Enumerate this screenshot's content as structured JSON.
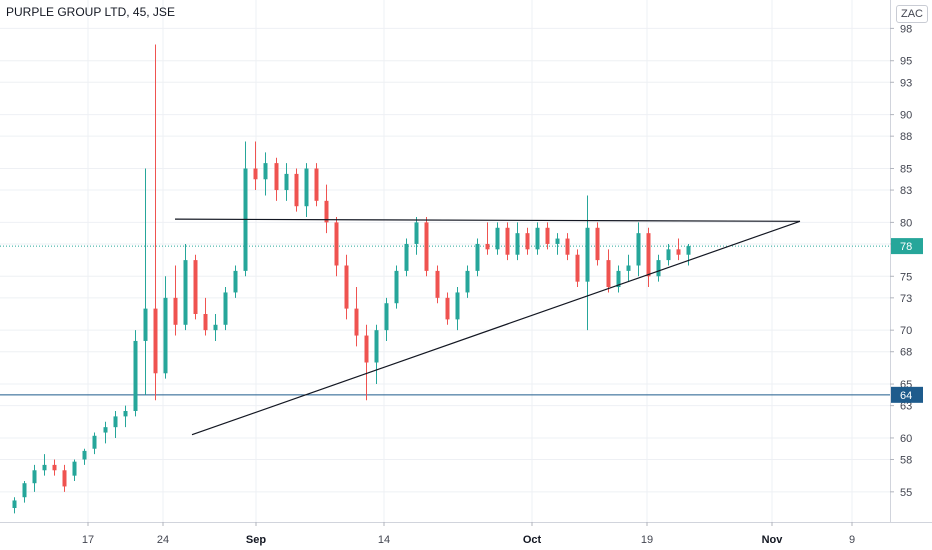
{
  "chart_data": {
    "type": "candlestick",
    "title": "PURPLE GROUP LTD, 45, JSE",
    "x_tick_labels": [
      "17",
      "24",
      "Sep",
      "14",
      "Oct",
      "19",
      "Nov",
      "9"
    ],
    "y_tick_labels": [
      "55",
      "58",
      "60",
      "63",
      "65",
      "68",
      "70",
      "73",
      "75",
      "78",
      "80",
      "83",
      "85",
      "88",
      "90",
      "93",
      "95",
      "98"
    ],
    "ylim": [
      53.5,
      98.5
    ],
    "last_price_label": "78",
    "last_price": 77.8,
    "horizontal_level_label": "64",
    "horizontal_level": 64.0,
    "grid": true,
    "up_color": "#26a69a",
    "down_color": "#ef5350",
    "level_color": "#1e5b8c",
    "trendlines": [
      {
        "name": "resistance",
        "from": {
          "date": "Aug 25",
          "price": 80.3
        },
        "to": {
          "date": "Nov 4",
          "price": 80.1
        }
      },
      {
        "name": "ascending-support",
        "from": {
          "date": "Aug 26",
          "price": 60.3
        },
        "to": {
          "date": "Nov 4",
          "price": 80.1
        }
      }
    ],
    "series": [
      {
        "name": "",
        "points": [
          {
            "x": "Aug 11",
            "o": 53.5,
            "h": 54.5,
            "l": 53.0,
            "c": 54.2
          },
          {
            "x": "Aug 12",
            "o": 54.5,
            "h": 56.0,
            "l": 54.0,
            "c": 55.8
          },
          {
            "x": "Aug 13",
            "o": 55.8,
            "h": 57.5,
            "l": 55.0,
            "c": 57.0
          },
          {
            "x": "Aug 14",
            "o": 57.0,
            "h": 58.5,
            "l": 56.5,
            "c": 57.5
          },
          {
            "x": "Aug 15",
            "o": 57.5,
            "h": 58.0,
            "l": 56.5,
            "c": 57.0
          },
          {
            "x": "Aug 16",
            "o": 57.0,
            "h": 57.5,
            "l": 55.0,
            "c": 55.5
          },
          {
            "x": "Aug 17",
            "o": 56.5,
            "h": 58.0,
            "l": 56.0,
            "c": 57.8
          },
          {
            "x": "Aug 18",
            "o": 58.0,
            "h": 59.0,
            "l": 57.5,
            "c": 58.8
          },
          {
            "x": "Aug 19",
            "o": 59.0,
            "h": 60.5,
            "l": 58.5,
            "c": 60.2
          },
          {
            "x": "Aug 20",
            "o": 60.5,
            "h": 61.5,
            "l": 59.5,
            "c": 61.0
          },
          {
            "x": "Aug 21",
            "o": 61.0,
            "h": 62.5,
            "l": 60.0,
            "c": 62.0
          },
          {
            "x": "Aug 22",
            "o": 62.0,
            "h": 63.0,
            "l": 61.0,
            "c": 62.5
          },
          {
            "x": "Aug 23",
            "o": 62.5,
            "h": 70.0,
            "l": 62.0,
            "c": 69.0
          },
          {
            "x": "Aug 23b",
            "o": 69.0,
            "h": 85.0,
            "l": 64.0,
            "c": 72.0
          },
          {
            "x": "Aug 23c",
            "o": 72.0,
            "h": 96.5,
            "l": 63.5,
            "c": 66.0
          },
          {
            "x": "Aug 24",
            "o": 66.0,
            "h": 75.0,
            "l": 65.5,
            "c": 73.0
          },
          {
            "x": "Aug 25",
            "o": 73.0,
            "h": 76.0,
            "l": 69.5,
            "c": 70.5
          },
          {
            "x": "Aug 26",
            "o": 70.5,
            "h": 78.0,
            "l": 70.0,
            "c": 76.5
          },
          {
            "x": "Aug 27",
            "o": 76.5,
            "h": 77.0,
            "l": 71.0,
            "c": 71.5
          },
          {
            "x": "Aug 28",
            "o": 71.5,
            "h": 73.0,
            "l": 69.5,
            "c": 70.0
          },
          {
            "x": "Aug 29",
            "o": 70.0,
            "h": 71.5,
            "l": 69.0,
            "c": 70.5
          },
          {
            "x": "Aug 30",
            "o": 70.5,
            "h": 74.0,
            "l": 70.0,
            "c": 73.5
          },
          {
            "x": "Aug 31",
            "o": 73.5,
            "h": 76.0,
            "l": 73.0,
            "c": 75.5
          },
          {
            "x": "Sep 1",
            "o": 75.5,
            "h": 87.5,
            "l": 75.0,
            "c": 85.0
          },
          {
            "x": "Sep 2",
            "o": 85.0,
            "h": 87.5,
            "l": 83.0,
            "c": 84.0
          },
          {
            "x": "Sep 3",
            "o": 84.0,
            "h": 86.5,
            "l": 82.5,
            "c": 85.5
          },
          {
            "x": "Sep 4",
            "o": 85.5,
            "h": 86.0,
            "l": 82.0,
            "c": 83.0
          },
          {
            "x": "Sep 5",
            "o": 83.0,
            "h": 85.5,
            "l": 82.0,
            "c": 84.5
          },
          {
            "x": "Sep 6",
            "o": 84.5,
            "h": 85.0,
            "l": 81.0,
            "c": 81.5
          },
          {
            "x": "Sep 7",
            "o": 81.5,
            "h": 85.5,
            "l": 80.5,
            "c": 85.0
          },
          {
            "x": "Sep 8",
            "o": 85.0,
            "h": 85.5,
            "l": 81.5,
            "c": 82.0
          },
          {
            "x": "Sep 9",
            "o": 82.0,
            "h": 83.5,
            "l": 79.0,
            "c": 80.0
          },
          {
            "x": "Sep 10",
            "o": 80.0,
            "h": 80.5,
            "l": 75.0,
            "c": 76.0
          },
          {
            "x": "Sep 11",
            "o": 76.0,
            "h": 77.0,
            "l": 71.0,
            "c": 72.0
          },
          {
            "x": "Sep 12",
            "o": 72.0,
            "h": 74.0,
            "l": 68.5,
            "c": 69.5
          },
          {
            "x": "Sep 13",
            "o": 69.5,
            "h": 70.5,
            "l": 63.5,
            "c": 67.0
          },
          {
            "x": "Sep 14",
            "o": 67.0,
            "h": 70.5,
            "l": 65.0,
            "c": 70.0
          },
          {
            "x": "Sep 15",
            "o": 70.0,
            "h": 73.0,
            "l": 69.0,
            "c": 72.5
          },
          {
            "x": "Sep 16",
            "o": 72.5,
            "h": 76.0,
            "l": 72.0,
            "c": 75.5
          },
          {
            "x": "Sep 17",
            "o": 75.5,
            "h": 78.5,
            "l": 75.0,
            "c": 78.0
          },
          {
            "x": "Sep 18",
            "o": 78.0,
            "h": 80.5,
            "l": 77.0,
            "c": 80.0
          },
          {
            "x": "Sep 19",
            "o": 80.0,
            "h": 80.5,
            "l": 75.0,
            "c": 75.5
          },
          {
            "x": "Sep 20",
            "o": 75.5,
            "h": 76.0,
            "l": 72.5,
            "c": 73.0
          },
          {
            "x": "Sep 21",
            "o": 73.0,
            "h": 73.5,
            "l": 70.5,
            "c": 71.0
          },
          {
            "x": "Sep 22",
            "o": 71.0,
            "h": 74.0,
            "l": 70.0,
            "c": 73.5
          },
          {
            "x": "Sep 23",
            "o": 73.5,
            "h": 76.0,
            "l": 73.0,
            "c": 75.5
          },
          {
            "x": "Sep 24",
            "o": 75.5,
            "h": 78.5,
            "l": 75.0,
            "c": 78.0
          },
          {
            "x": "Sep 25",
            "o": 78.0,
            "h": 80.0,
            "l": 77.0,
            "c": 77.5
          },
          {
            "x": "Sep 26",
            "o": 77.5,
            "h": 80.0,
            "l": 77.0,
            "c": 79.5
          },
          {
            "x": "Sep 27",
            "o": 79.5,
            "h": 80.0,
            "l": 76.5,
            "c": 77.0
          },
          {
            "x": "Sep 28",
            "o": 77.0,
            "h": 80.0,
            "l": 76.5,
            "c": 79.0
          },
          {
            "x": "Sep 29",
            "o": 79.0,
            "h": 79.5,
            "l": 77.0,
            "c": 77.5
          },
          {
            "x": "Sep 30",
            "o": 77.5,
            "h": 80.0,
            "l": 77.0,
            "c": 79.5
          },
          {
            "x": "Oct 1",
            "o": 79.5,
            "h": 80.0,
            "l": 77.5,
            "c": 78.0
          },
          {
            "x": "Oct 2",
            "o": 78.0,
            "h": 79.0,
            "l": 77.0,
            "c": 78.5
          },
          {
            "x": "Oct 3",
            "o": 78.5,
            "h": 79.0,
            "l": 76.5,
            "c": 77.0
          },
          {
            "x": "Oct 4",
            "o": 77.0,
            "h": 77.5,
            "l": 74.0,
            "c": 74.5
          },
          {
            "x": "Oct 5",
            "o": 74.5,
            "h": 82.5,
            "l": 70.0,
            "c": 79.5
          },
          {
            "x": "Oct 6",
            "o": 79.5,
            "h": 80.0,
            "l": 76.0,
            "c": 76.5
          },
          {
            "x": "Oct 7",
            "o": 76.5,
            "h": 77.5,
            "l": 73.5,
            "c": 74.0
          },
          {
            "x": "Oct 8",
            "o": 74.0,
            "h": 76.0,
            "l": 73.5,
            "c": 75.5
          },
          {
            "x": "Oct 9",
            "o": 75.5,
            "h": 77.0,
            "l": 74.5,
            "c": 76.0
          },
          {
            "x": "Oct 10",
            "o": 76.0,
            "h": 80.0,
            "l": 75.0,
            "c": 79.0
          },
          {
            "x": "Oct 11",
            "o": 79.0,
            "h": 79.5,
            "l": 74.0,
            "c": 75.0
          },
          {
            "x": "Oct 12",
            "o": 75.0,
            "h": 77.0,
            "l": 74.5,
            "c": 76.5
          },
          {
            "x": "Oct 13",
            "o": 76.5,
            "h": 78.0,
            "l": 76.0,
            "c": 77.5
          },
          {
            "x": "Oct 14",
            "o": 77.5,
            "h": 78.5,
            "l": 76.5,
            "c": 77.0
          },
          {
            "x": "Oct 15",
            "o": 77.0,
            "h": 78.0,
            "l": 76.0,
            "c": 77.8
          }
        ]
      }
    ]
  }
}
